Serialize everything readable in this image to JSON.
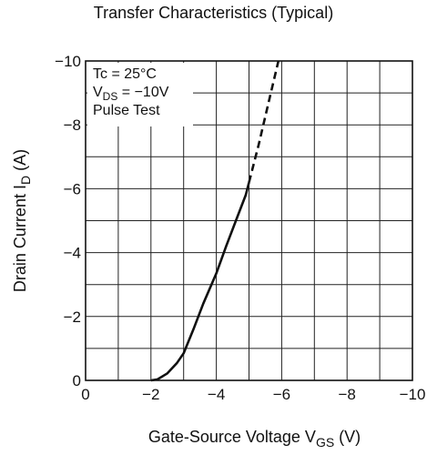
{
  "chart_data": {
    "type": "line",
    "title": "Transfer Characteristics (Typical)",
    "xlabel": {
      "main": "Gate-Source Voltage  V",
      "sub": "GS",
      "unit": "  (V)"
    },
    "ylabel": {
      "main": "Drain Current  I",
      "sub": "D",
      "unit": "  (A)"
    },
    "xlim": [
      0,
      -10
    ],
    "ylim": [
      0,
      -10
    ],
    "grid": true,
    "x_ticks": [
      0,
      -2,
      -4,
      -6,
      -8,
      -10
    ],
    "y_ticks": [
      0,
      -2,
      -4,
      -6,
      -8,
      -10
    ],
    "x_tick_labels": [
      "0",
      "−2",
      "−4",
      "−6",
      "−8",
      "−10"
    ],
    "y_tick_labels": [
      "0",
      "−2",
      "−4",
      "−6",
      "−8",
      "−10"
    ],
    "annotations": {
      "line1": "Tc = 25°C",
      "line2_main": "V",
      "line2_sub": "DS",
      "line2_rest": " = −10V",
      "line3": "Pulse Test"
    },
    "series": [
      {
        "style": "solid",
        "x": [
          -2.0,
          -2.2,
          -2.5,
          -2.8,
          -3.0,
          -3.3,
          -3.6,
          -4.0,
          -4.3,
          -4.6,
          -4.9,
          -5.0
        ],
        "y": [
          0,
          -0.03,
          -0.22,
          -0.55,
          -0.85,
          -1.6,
          -2.4,
          -3.35,
          -4.2,
          -5.0,
          -5.8,
          -6.2
        ]
      },
      {
        "style": "dashed",
        "x": [
          -5.0,
          -5.3,
          -5.6,
          -5.9
        ],
        "y": [
          -6.2,
          -7.4,
          -8.7,
          -10.0
        ]
      }
    ]
  }
}
